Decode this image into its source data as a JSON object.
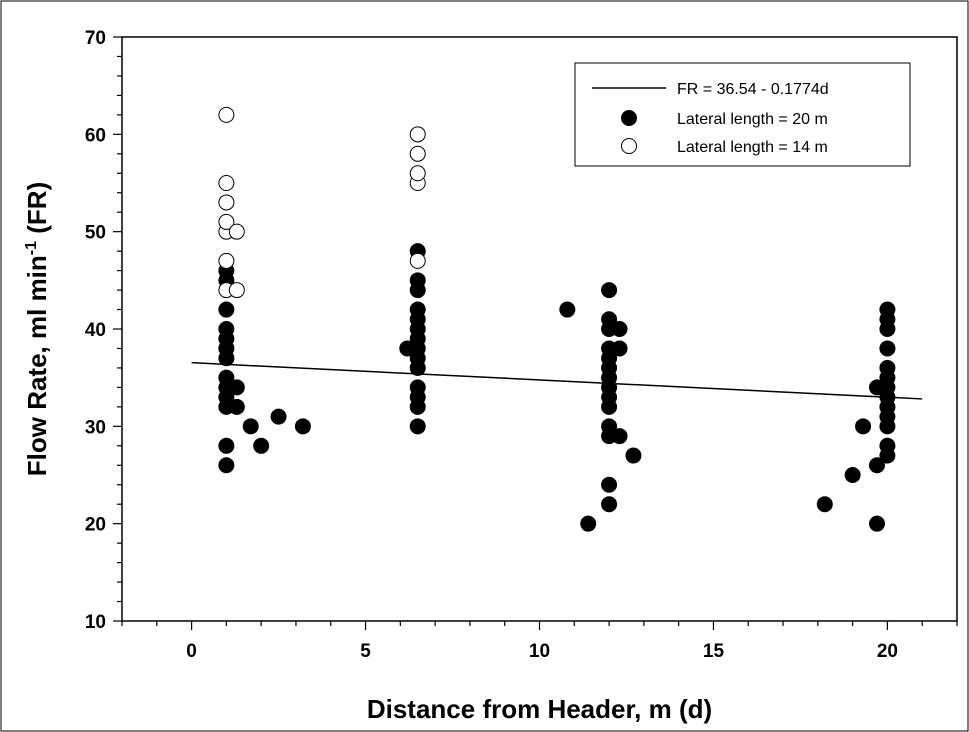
{
  "chart_data": {
    "type": "scatter",
    "title": "",
    "xlabel": "Distance from Header, m (d)",
    "ylabel": {
      "main": "Flow Rate, ml min",
      "superscript": "-1",
      "suffix": " (FR)"
    },
    "xlim": [
      -2,
      22
    ],
    "ylim": [
      10,
      70
    ],
    "xticks": [
      0,
      5,
      10,
      15,
      20
    ],
    "yticks": [
      10,
      20,
      30,
      40,
      50,
      60,
      70
    ],
    "grid": false,
    "legend_position": "top-right",
    "regression": {
      "label": "FR = 36.54 - 0.1774d",
      "intercept": 36.54,
      "slope": -0.1774,
      "x_range": [
        0,
        21
      ]
    },
    "series": [
      {
        "name": "Lateral length = 20 m",
        "marker": "filled-circle",
        "color": "#000000",
        "points": [
          [
            1.0,
            26
          ],
          [
            1.0,
            28
          ],
          [
            1.0,
            32
          ],
          [
            1.0,
            33
          ],
          [
            1.0,
            34
          ],
          [
            1.0,
            35
          ],
          [
            1.0,
            37
          ],
          [
            1.0,
            38
          ],
          [
            1.0,
            39
          ],
          [
            1.0,
            40
          ],
          [
            1.0,
            42
          ],
          [
            1.0,
            45
          ],
          [
            1.0,
            46
          ],
          [
            1.3,
            32
          ],
          [
            1.3,
            34
          ],
          [
            1.7,
            30
          ],
          [
            2.0,
            28
          ],
          [
            2.5,
            31
          ],
          [
            3.2,
            30
          ],
          [
            6.2,
            38
          ],
          [
            6.5,
            30
          ],
          [
            6.5,
            32
          ],
          [
            6.5,
            33
          ],
          [
            6.5,
            34
          ],
          [
            6.5,
            36
          ],
          [
            6.5,
            37
          ],
          [
            6.5,
            38
          ],
          [
            6.5,
            39
          ],
          [
            6.5,
            40
          ],
          [
            6.5,
            41
          ],
          [
            6.5,
            42
          ],
          [
            6.5,
            44
          ],
          [
            6.5,
            45
          ],
          [
            6.5,
            48
          ],
          [
            10.8,
            42
          ],
          [
            11.4,
            20
          ],
          [
            12.0,
            22
          ],
          [
            12.0,
            24
          ],
          [
            12.0,
            29
          ],
          [
            12.0,
            30
          ],
          [
            12.0,
            32
          ],
          [
            12.0,
            33
          ],
          [
            12.0,
            34
          ],
          [
            12.0,
            35
          ],
          [
            12.0,
            36
          ],
          [
            12.0,
            37
          ],
          [
            12.0,
            38
          ],
          [
            12.0,
            40
          ],
          [
            12.0,
            41
          ],
          [
            12.0,
            44
          ],
          [
            12.3,
            29
          ],
          [
            12.3,
            38
          ],
          [
            12.3,
            40
          ],
          [
            12.7,
            27
          ],
          [
            18.2,
            22
          ],
          [
            19.0,
            25
          ],
          [
            19.3,
            30
          ],
          [
            19.7,
            20
          ],
          [
            19.7,
            26
          ],
          [
            19.7,
            34
          ],
          [
            20.0,
            27
          ],
          [
            20.0,
            28
          ],
          [
            20.0,
            30
          ],
          [
            20.0,
            31
          ],
          [
            20.0,
            32
          ],
          [
            20.0,
            33
          ],
          [
            20.0,
            34
          ],
          [
            20.0,
            35
          ],
          [
            20.0,
            36
          ],
          [
            20.0,
            38
          ],
          [
            20.0,
            40
          ],
          [
            20.0,
            41
          ],
          [
            20.0,
            42
          ]
        ]
      },
      {
        "name": "Lateral length = 14 m",
        "marker": "open-circle",
        "color": "#000000",
        "points": [
          [
            1.0,
            44
          ],
          [
            1.0,
            47
          ],
          [
            1.0,
            50
          ],
          [
            1.0,
            51
          ],
          [
            1.0,
            53
          ],
          [
            1.0,
            55
          ],
          [
            1.0,
            62
          ],
          [
            1.3,
            44
          ],
          [
            1.3,
            50
          ],
          [
            6.5,
            47
          ],
          [
            6.5,
            55
          ],
          [
            6.5,
            56
          ],
          [
            6.5,
            58
          ],
          [
            6.5,
            60
          ]
        ]
      }
    ]
  }
}
